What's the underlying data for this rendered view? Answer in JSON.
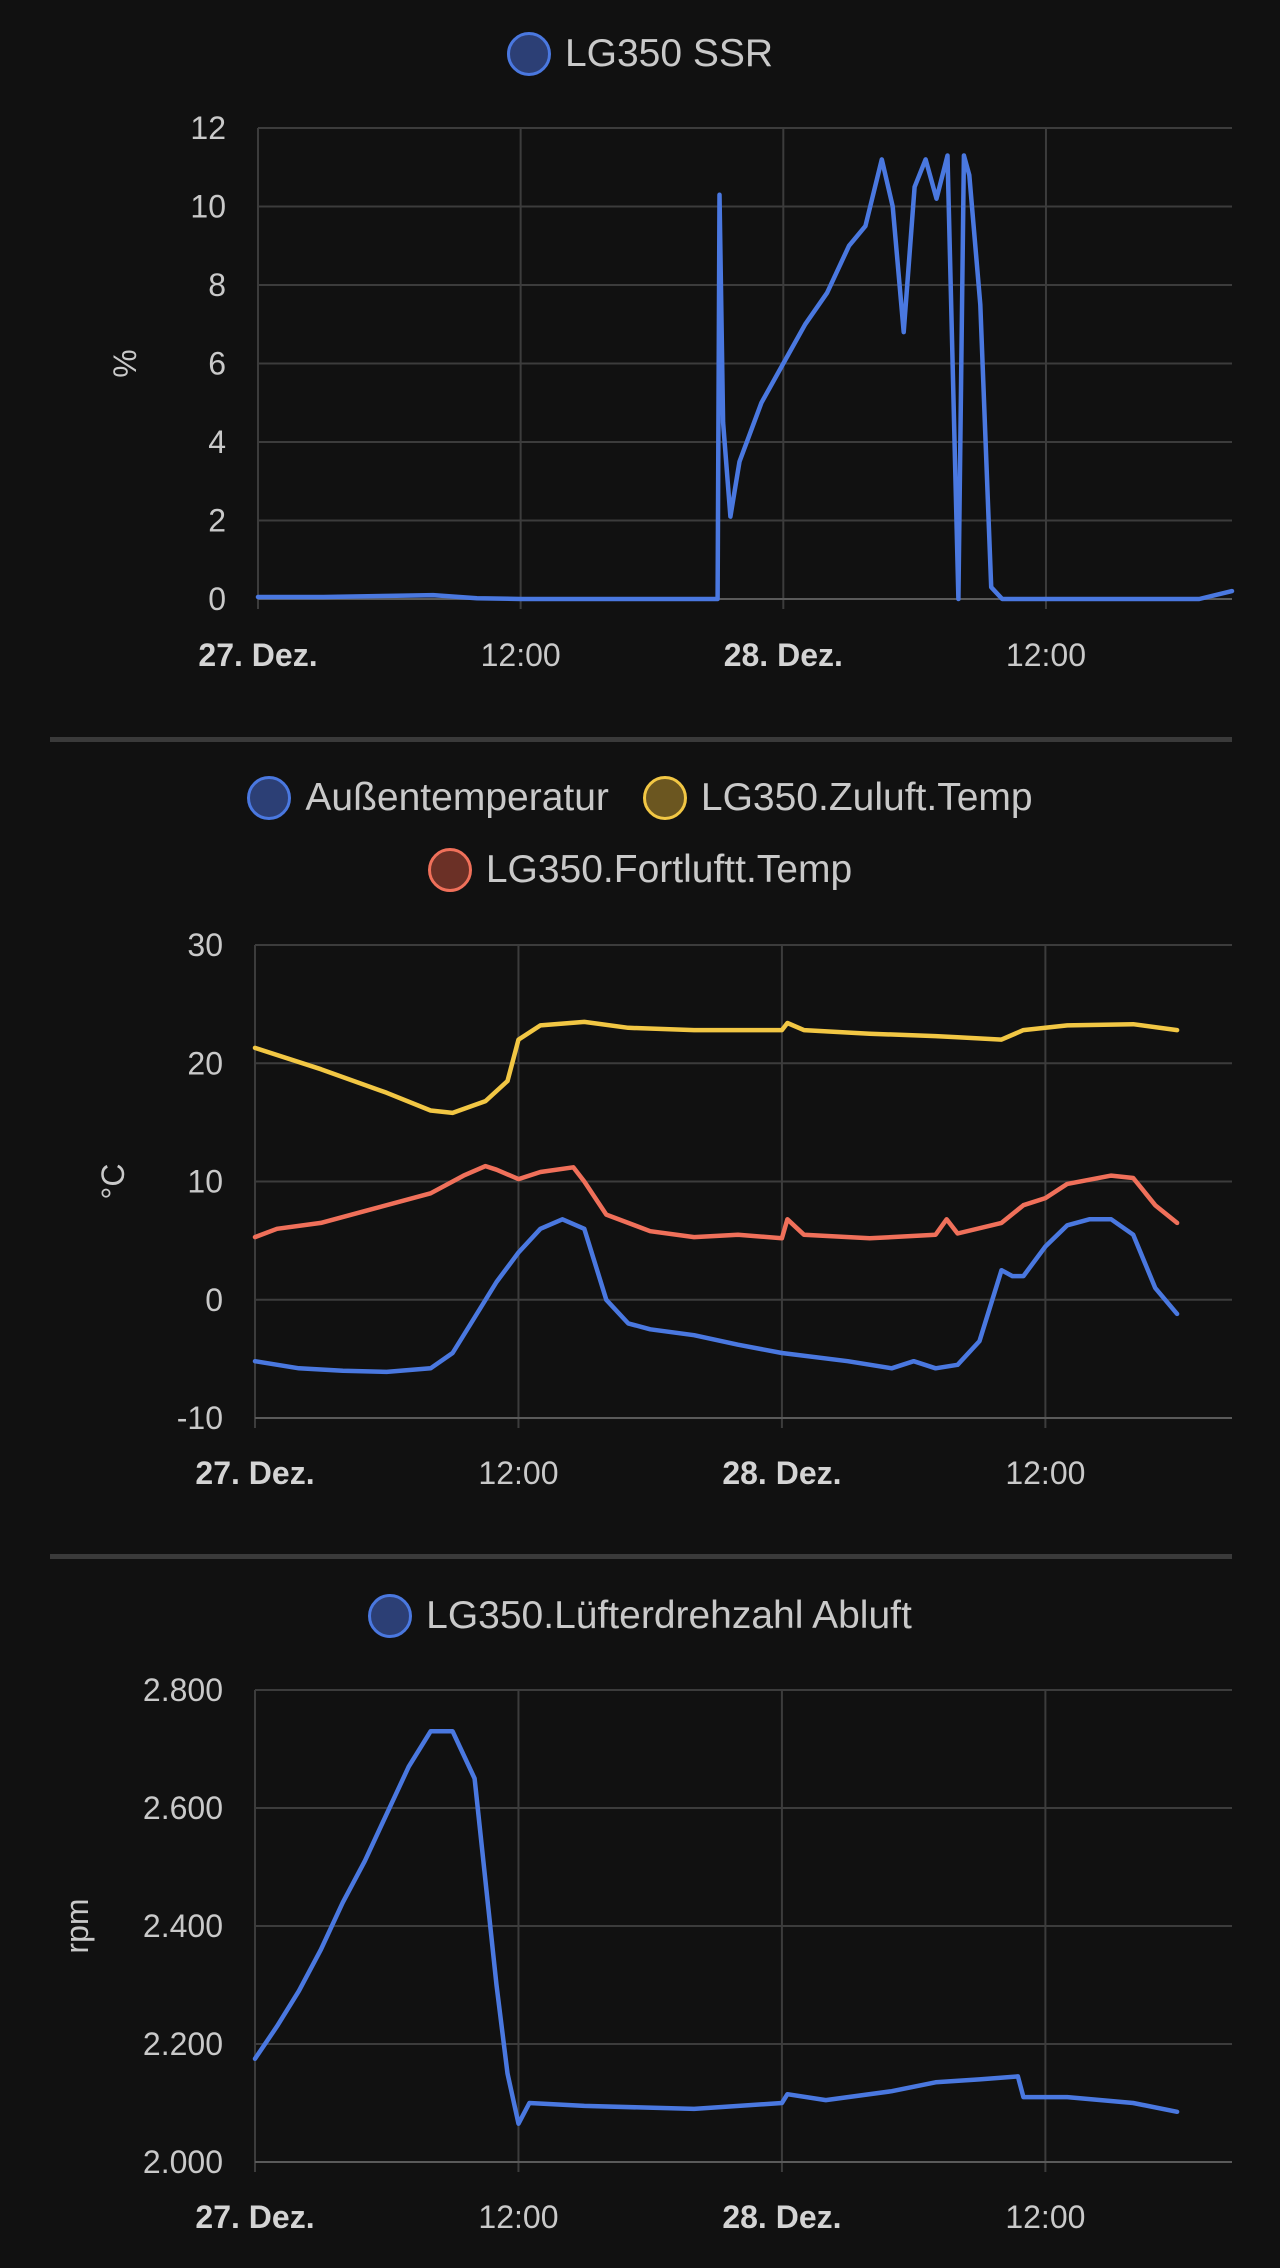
{
  "chart_data": [
    {
      "type": "line",
      "x_type": "time",
      "x_ticks": [
        "27. Dez.",
        "12:00",
        "28. Dez.",
        "12:00"
      ],
      "x_tick_major": [
        true,
        false,
        true,
        false
      ],
      "xlim": [
        "27. Dez. 00:00",
        "28. Dez. 20:30"
      ],
      "ylabel": "%",
      "ylim": [
        0,
        12
      ],
      "y_ticks": [
        "0",
        "2",
        "4",
        "6",
        "8",
        "10",
        "12"
      ],
      "grid": true,
      "legend_position": "top-center",
      "series": [
        {
          "name": "LG350 SSR",
          "color": "#4a78e0",
          "fill": "#2c3f75",
          "points": [
            [
              "27. Dez. 00:00",
              0.05
            ],
            [
              "27. Dez. 03:00",
              0.05
            ],
            [
              "27. Dez. 06:00",
              0.08
            ],
            [
              "27. Dez. 08:00",
              0.1
            ],
            [
              "27. Dez. 10:00",
              0.02
            ],
            [
              "27. Dez. 12:00",
              0.0
            ],
            [
              "27. Dez. 16:00",
              0.0
            ],
            [
              "27. Dez. 21:00",
              0.0
            ],
            [
              "27. Dez. 21:05",
              10.3
            ],
            [
              "27. Dez. 21:15",
              4.5
            ],
            [
              "27. Dez. 21:35",
              2.1
            ],
            [
              "27. Dez. 22:00",
              3.5
            ],
            [
              "27. Dez. 23:00",
              5.0
            ],
            [
              "28. Dez. 00:00",
              6.0
            ],
            [
              "28. Dez. 01:00",
              7.0
            ],
            [
              "28. Dez. 02:00",
              7.8
            ],
            [
              "28. Dez. 03:00",
              9.0
            ],
            [
              "28. Dez. 03:45",
              9.5
            ],
            [
              "28. Dez. 04:30",
              11.2
            ],
            [
              "28. Dez. 05:00",
              10.0
            ],
            [
              "28. Dez. 05:30",
              6.8
            ],
            [
              "28. Dez. 06:00",
              10.5
            ],
            [
              "28. Dez. 06:30",
              11.2
            ],
            [
              "28. Dez. 07:00",
              10.2
            ],
            [
              "28. Dez. 07:30",
              11.3
            ],
            [
              "28. Dez. 08:00",
              0.0
            ],
            [
              "28. Dez. 08:15",
              11.3
            ],
            [
              "28. Dez. 08:30",
              10.8
            ],
            [
              "28. Dez. 09:00",
              7.5
            ],
            [
              "28. Dez. 09:30",
              0.3
            ],
            [
              "28. Dez. 10:00",
              0.0
            ],
            [
              "28. Dez. 16:00",
              0.0
            ],
            [
              "28. Dez. 19:00",
              0.0
            ],
            [
              "28. Dez. 20:30",
              0.2
            ]
          ]
        }
      ]
    },
    {
      "type": "line",
      "x_type": "time",
      "x_ticks": [
        "27. Dez.",
        "12:00",
        "28. Dez.",
        "12:00"
      ],
      "x_tick_major": [
        true,
        false,
        true,
        false
      ],
      "xlim": [
        "27. Dez. 00:00",
        "28. Dez. 20:30"
      ],
      "ylabel": "°C",
      "ylim": [
        -10,
        30
      ],
      "y_ticks": [
        "-10",
        "0",
        "10",
        "20",
        "30"
      ],
      "grid": true,
      "legend_position": "top-center",
      "series": [
        {
          "name": "Außentemperatur",
          "color": "#4a78e0",
          "fill": "#2c3f75",
          "points": [
            [
              "27. Dez. 00:00",
              -5.2
            ],
            [
              "27. Dez. 02:00",
              -5.8
            ],
            [
              "27. Dez. 04:00",
              -6.0
            ],
            [
              "27. Dez. 06:00",
              -6.1
            ],
            [
              "27. Dez. 08:00",
              -5.8
            ],
            [
              "27. Dez. 09:00",
              -4.5
            ],
            [
              "27. Dez. 10:00",
              -1.5
            ],
            [
              "27. Dez. 11:00",
              1.5
            ],
            [
              "27. Dez. 12:00",
              4.0
            ],
            [
              "27. Dez. 13:00",
              6.0
            ],
            [
              "27. Dez. 14:00",
              6.8
            ],
            [
              "27. Dez. 15:00",
              6.0
            ],
            [
              "27. Dez. 16:00",
              0.0
            ],
            [
              "27. Dez. 17:00",
              -2.0
            ],
            [
              "27. Dez. 18:00",
              -2.5
            ],
            [
              "27. Dez. 20:00",
              -3.0
            ],
            [
              "27. Dez. 22:00",
              -3.8
            ],
            [
              "28. Dez. 00:00",
              -4.5
            ],
            [
              "28. Dez. 03:00",
              -5.2
            ],
            [
              "28. Dez. 05:00",
              -5.8
            ],
            [
              "28. Dez. 06:00",
              -5.2
            ],
            [
              "28. Dez. 07:00",
              -5.8
            ],
            [
              "28. Dez. 08:00",
              -5.5
            ],
            [
              "28. Dez. 09:00",
              -3.5
            ],
            [
              "28. Dez. 10:00",
              2.5
            ],
            [
              "28. Dez. 10:30",
              2.0
            ],
            [
              "28. Dez. 11:00",
              2.0
            ],
            [
              "28. Dez. 12:00",
              4.5
            ],
            [
              "28. Dez. 13:00",
              6.3
            ],
            [
              "28. Dez. 14:00",
              6.8
            ],
            [
              "28. Dez. 15:00",
              6.8
            ],
            [
              "28. Dez. 16:00",
              5.5
            ],
            [
              "28. Dez. 17:00",
              1.0
            ],
            [
              "28. Dez. 18:00",
              -1.2
            ]
          ]
        },
        {
          "name": "LG350.Zuluft.Temp",
          "color": "#f2c744",
          "fill": "#6b5620",
          "points": [
            [
              "27. Dez. 00:00",
              21.3
            ],
            [
              "27. Dez. 03:00",
              19.5
            ],
            [
              "27. Dez. 06:00",
              17.5
            ],
            [
              "27. Dez. 08:00",
              16.0
            ],
            [
              "27. Dez. 09:00",
              15.8
            ],
            [
              "27. Dez. 10:30",
              16.8
            ],
            [
              "27. Dez. 11:30",
              18.5
            ],
            [
              "27. Dez. 12:00",
              22.0
            ],
            [
              "27. Dez. 13:00",
              23.2
            ],
            [
              "27. Dez. 15:00",
              23.5
            ],
            [
              "27. Dez. 17:00",
              23.0
            ],
            [
              "27. Dez. 20:00",
              22.8
            ],
            [
              "28. Dez. 00:00",
              22.8
            ],
            [
              "28. Dez. 00:15",
              23.4
            ],
            [
              "28. Dez. 01:00",
              22.8
            ],
            [
              "28. Dez. 04:00",
              22.5
            ],
            [
              "28. Dez. 07:00",
              22.3
            ],
            [
              "28. Dez. 08:00",
              22.2
            ],
            [
              "28. Dez. 10:00",
              22.0
            ],
            [
              "28. Dez. 11:00",
              22.8
            ],
            [
              "28. Dez. 13:00",
              23.2
            ],
            [
              "28. Dez. 16:00",
              23.3
            ],
            [
              "28. Dez. 18:00",
              22.8
            ]
          ]
        },
        {
          "name": "LG350.Fortluftt.Temp",
          "color": "#f0705a",
          "fill": "#6b3026",
          "points": [
            [
              "27. Dez. 00:00",
              5.3
            ],
            [
              "27. Dez. 01:00",
              6.0
            ],
            [
              "27. Dez. 03:00",
              6.5
            ],
            [
              "27. Dez. 05:00",
              7.5
            ],
            [
              "27. Dez. 08:00",
              9.0
            ],
            [
              "27. Dez. 09:30",
              10.5
            ],
            [
              "27. Dez. 10:30",
              11.3
            ],
            [
              "27. Dez. 11:00",
              11.0
            ],
            [
              "27. Dez. 12:00",
              10.2
            ],
            [
              "27. Dez. 13:00",
              10.8
            ],
            [
              "27. Dez. 14:30",
              11.2
            ],
            [
              "27. Dez. 15:00",
              10.0
            ],
            [
              "27. Dez. 16:00",
              7.2
            ],
            [
              "27. Dez. 18:00",
              5.8
            ],
            [
              "27. Dez. 20:00",
              5.3
            ],
            [
              "27. Dez. 22:00",
              5.5
            ],
            [
              "28. Dez. 00:00",
              5.2
            ],
            [
              "28. Dez. 00:15",
              6.8
            ],
            [
              "28. Dez. 01:00",
              5.5
            ],
            [
              "28. Dez. 04:00",
              5.2
            ],
            [
              "28. Dez. 07:00",
              5.5
            ],
            [
              "28. Dez. 07:30",
              6.8
            ],
            [
              "28. Dez. 08:00",
              5.6
            ],
            [
              "28. Dez. 10:00",
              6.5
            ],
            [
              "28. Dez. 11:00",
              8.0
            ],
            [
              "28. Dez. 12:00",
              8.6
            ],
            [
              "28. Dez. 13:00",
              9.8
            ],
            [
              "28. Dez. 15:00",
              10.5
            ],
            [
              "28. Dez. 16:00",
              10.3
            ],
            [
              "28. Dez. 17:00",
              8.0
            ],
            [
              "28. Dez. 18:00",
              6.5
            ]
          ]
        }
      ]
    },
    {
      "type": "line",
      "x_type": "time",
      "x_ticks": [
        "27. Dez.",
        "12:00",
        "28. Dez.",
        "12:00"
      ],
      "x_tick_major": [
        true,
        false,
        true,
        false
      ],
      "xlim": [
        "27. Dez. 00:00",
        "28. Dez. 20:30"
      ],
      "ylabel": "rpm",
      "ylim": [
        2000,
        2800
      ],
      "y_ticks": [
        "2.000",
        "2.200",
        "2.400",
        "2.600",
        "2.800"
      ],
      "grid": true,
      "legend_position": "top-center",
      "series": [
        {
          "name": "LG350.Lüfterdrehzahl Abluft",
          "color": "#4a78e0",
          "fill": "#2c3f75",
          "points": [
            [
              "27. Dez. 00:00",
              2175
            ],
            [
              "27. Dez. 01:00",
              2230
            ],
            [
              "27. Dez. 02:00",
              2290
            ],
            [
              "27. Dez. 03:00",
              2360
            ],
            [
              "27. Dez. 04:00",
              2440
            ],
            [
              "27. Dez. 05:00",
              2510
            ],
            [
              "27. Dez. 06:00",
              2590
            ],
            [
              "27. Dez. 07:00",
              2670
            ],
            [
              "27. Dez. 08:00",
              2730
            ],
            [
              "27. Dez. 09:00",
              2730
            ],
            [
              "27. Dez. 10:00",
              2650
            ],
            [
              "27. Dez. 11:00",
              2300
            ],
            [
              "27. Dez. 11:30",
              2150
            ],
            [
              "27. Dez. 12:00",
              2065
            ],
            [
              "27. Dez. 12:30",
              2100
            ],
            [
              "27. Dez. 15:00",
              2095
            ],
            [
              "27. Dez. 20:00",
              2090
            ],
            [
              "28. Dez. 00:00",
              2100
            ],
            [
              "28. Dez. 00:15",
              2115
            ],
            [
              "28. Dez. 02:00",
              2105
            ],
            [
              "28. Dez. 05:00",
              2120
            ],
            [
              "28. Dez. 07:00",
              2135
            ],
            [
              "28. Dez. 09:00",
              2140
            ],
            [
              "28. Dez. 10:45",
              2145
            ],
            [
              "28. Dez. 11:00",
              2110
            ],
            [
              "28. Dez. 13:00",
              2110
            ],
            [
              "28. Dez. 16:00",
              2100
            ],
            [
              "28. Dez. 18:00",
              2085
            ]
          ]
        }
      ]
    }
  ]
}
